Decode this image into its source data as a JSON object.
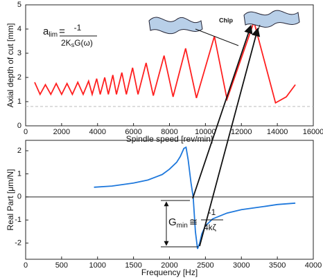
{
  "chart_data": [
    {
      "type": "line",
      "y_label": "Axial depth of cut [mm]",
      "x_label": "Spindle speed [rev/min]",
      "x": [
        500,
        800,
        1100,
        1400,
        1700,
        2000,
        2300,
        2600,
        2900,
        3200,
        3500,
        3700,
        3950,
        4150,
        4400,
        4600,
        4850,
        5050,
        5350,
        5600,
        5950,
        6250,
        6700,
        7100,
        7700,
        8200,
        8900,
        9500,
        10500,
        11200,
        12700,
        13900,
        14500,
        15000
      ],
      "values": [
        1.8,
        1.3,
        1.7,
        1.3,
        1.75,
        1.3,
        1.75,
        1.3,
        1.8,
        1.3,
        1.85,
        1.3,
        1.95,
        1.3,
        2.0,
        1.3,
        2.1,
        1.3,
        2.2,
        1.3,
        2.4,
        1.3,
        2.6,
        1.25,
        2.9,
        1.2,
        3.2,
        1.15,
        3.7,
        1.1,
        4.3,
        0.95,
        1.2,
        1.7
      ],
      "color": "#ff2020",
      "reference_line": 0.8,
      "xlim": [
        0,
        16000
      ],
      "xticks": [
        0,
        2000,
        4000,
        6000,
        8000,
        10000,
        12000,
        14000,
        16000
      ],
      "ylim": [
        0,
        5
      ],
      "yticks": [
        0,
        1,
        2,
        3,
        4,
        5
      ],
      "formula": {
        "symbol": "a",
        "subscript": "lim",
        "equals": "=",
        "numerator": "-1",
        "denominator": [
          "2K",
          "s",
          "G(ω)"
        ]
      },
      "annotation": "Chip"
    },
    {
      "type": "line",
      "y_label": "Real Part [μm/N]",
      "x_label": "Frequency [Hz]",
      "x": [
        950,
        1200,
        1500,
        1700,
        1900,
        2000,
        2100,
        2150,
        2200,
        2230,
        2260,
        2300,
        2330,
        2360,
        2390,
        2420,
        2450,
        2500,
        2600,
        2800,
        3000,
        3300,
        3500,
        3750
      ],
      "values": [
        0.42,
        0.47,
        0.6,
        0.73,
        0.97,
        1.2,
        1.5,
        1.75,
        2.1,
        2.15,
        1.6,
        0.6,
        0.0,
        -1.5,
        -2.25,
        -2.0,
        -1.6,
        -1.25,
        -0.95,
        -0.7,
        -0.55,
        -0.42,
        -0.33,
        -0.27
      ],
      "color": "#1e78dc",
      "zero_line": true,
      "xlim": [
        0,
        4000
      ],
      "xticks": [
        0,
        500,
        1000,
        1500,
        2000,
        2500,
        3000,
        3500,
        4000
      ],
      "ylim": [
        -2.7,
        2.45
      ],
      "yticks": [
        -2,
        -1,
        0,
        1,
        2
      ],
      "formula": {
        "symbol": "G",
        "subscript": "min",
        "equals": "≅",
        "numerator": "-1",
        "denominator": [
          "4kζ"
        ]
      }
    }
  ]
}
